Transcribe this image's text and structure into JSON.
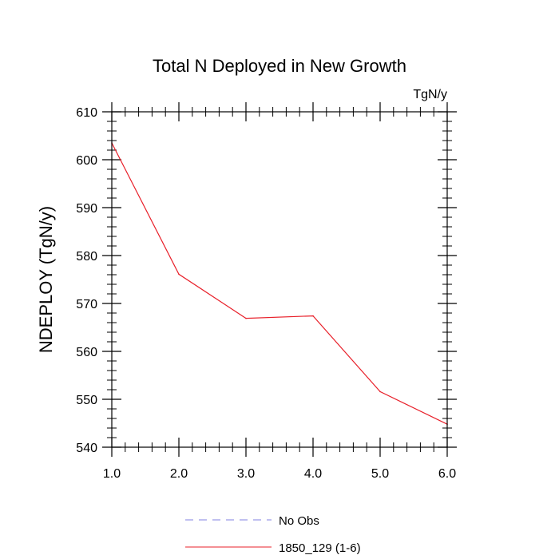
{
  "chart_data": {
    "type": "line",
    "title": "Total N Deployed in New Growth",
    "units_label": "TgN/y",
    "xlabel": "",
    "ylabel": "NDEPLOY  (TgN/y)",
    "xlim": [
      1.0,
      6.0
    ],
    "ylim": [
      540,
      610
    ],
    "xticks": [
      1.0,
      2.0,
      3.0,
      4.0,
      5.0,
      6.0
    ],
    "xtick_labels": [
      "1.0",
      "2.0",
      "3.0",
      "4.0",
      "5.0",
      "6.0"
    ],
    "yticks": [
      540,
      550,
      560,
      570,
      580,
      590,
      600,
      610
    ],
    "ytick_labels": [
      "540",
      "550",
      "560",
      "570",
      "580",
      "590",
      "600",
      "610"
    ],
    "x_minor_step": 0.2,
    "y_minor_step": 2,
    "grid": false,
    "legend_position": "bottom-center",
    "series": [
      {
        "name": "1850_129 (1-6)",
        "color": "#e8202a",
        "style": "solid",
        "x": [
          1.0,
          2.0,
          3.0,
          4.0,
          5.0,
          6.0
        ],
        "values": [
          603.5,
          576.1,
          566.9,
          567.4,
          551.6,
          544.8
        ]
      }
    ],
    "legend": [
      {
        "label": "No Obs",
        "color": "#8080e0",
        "style": "dashed"
      },
      {
        "label": "1850_129 (1-6)",
        "color": "#e8202a",
        "style": "solid"
      }
    ]
  }
}
